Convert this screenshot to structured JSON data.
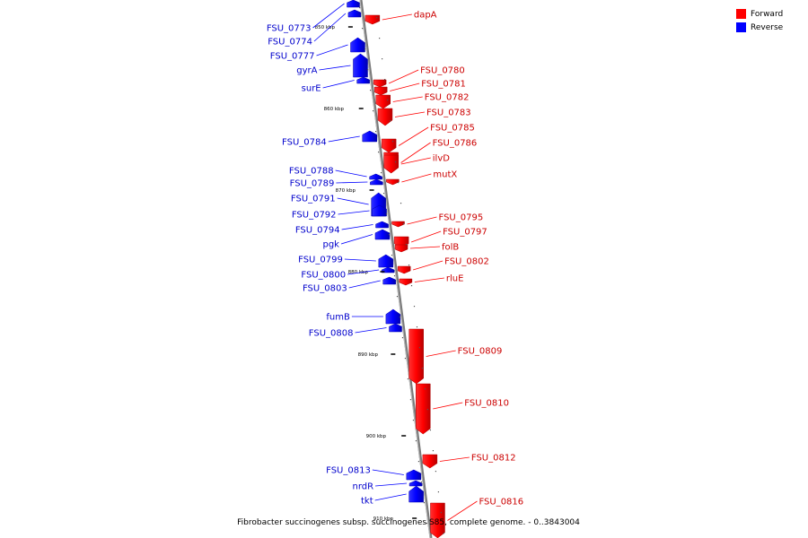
{
  "legend": [
    {
      "label": "Forward",
      "color": "#ff0000"
    },
    {
      "label": "Reverse",
      "color": "#0000ff"
    }
  ],
  "caption": "Fibrobacter succinogenes subsp. succinogenes S85, complete genome. - 0..3843004",
  "ticks": [
    {
      "label": "850 kbp"
    },
    {
      "label": "860 kbp"
    },
    {
      "label": "870 kbp"
    },
    {
      "label": "880 kbp"
    },
    {
      "label": "890 kbp"
    },
    {
      "label": "900 kbp"
    },
    {
      "label": "910 kbp"
    }
  ],
  "genes": [
    {
      "name": "FSU_0773",
      "strand": "reverse"
    },
    {
      "name": "FSU_0774",
      "strand": "reverse"
    },
    {
      "name": "dapA",
      "strand": "forward"
    },
    {
      "name": "FSU_0777",
      "strand": "reverse"
    },
    {
      "name": "gyrA",
      "strand": "reverse"
    },
    {
      "name": "surE",
      "strand": "reverse"
    },
    {
      "name": "FSU_0780",
      "strand": "forward"
    },
    {
      "name": "FSU_0781",
      "strand": "forward"
    },
    {
      "name": "FSU_0782",
      "strand": "forward"
    },
    {
      "name": "FSU_0783",
      "strand": "forward"
    },
    {
      "name": "FSU_0784",
      "strand": "reverse"
    },
    {
      "name": "FSU_0785",
      "strand": "forward"
    },
    {
      "name": "FSU_0786",
      "strand": "forward"
    },
    {
      "name": "ilvD",
      "strand": "forward"
    },
    {
      "name": "FSU_0788",
      "strand": "reverse"
    },
    {
      "name": "mutX",
      "strand": "forward"
    },
    {
      "name": "FSU_0789",
      "strand": "reverse"
    },
    {
      "name": "FSU_0791",
      "strand": "reverse"
    },
    {
      "name": "FSU_0792",
      "strand": "reverse"
    },
    {
      "name": "FSU_0795",
      "strand": "forward"
    },
    {
      "name": "FSU_0794",
      "strand": "reverse"
    },
    {
      "name": "FSU_0797",
      "strand": "forward"
    },
    {
      "name": "pgk",
      "strand": "reverse"
    },
    {
      "name": "folB",
      "strand": "forward"
    },
    {
      "name": "FSU_0799",
      "strand": "reverse"
    },
    {
      "name": "FSU_0802",
      "strand": "forward"
    },
    {
      "name": "FSU_0800",
      "strand": "reverse"
    },
    {
      "name": "rluE",
      "strand": "forward"
    },
    {
      "name": "FSU_0803",
      "strand": "reverse"
    },
    {
      "name": "fumB",
      "strand": "reverse"
    },
    {
      "name": "FSU_0808",
      "strand": "reverse"
    },
    {
      "name": "FSU_0809",
      "strand": "forward"
    },
    {
      "name": "FSU_0810",
      "strand": "forward"
    },
    {
      "name": "FSU_0812",
      "strand": "forward"
    },
    {
      "name": "FSU_0813",
      "strand": "reverse"
    },
    {
      "name": "nrdR",
      "strand": "reverse"
    },
    {
      "name": "tkt",
      "strand": "reverse"
    },
    {
      "name": "FSU_0816",
      "strand": "forward"
    }
  ]
}
